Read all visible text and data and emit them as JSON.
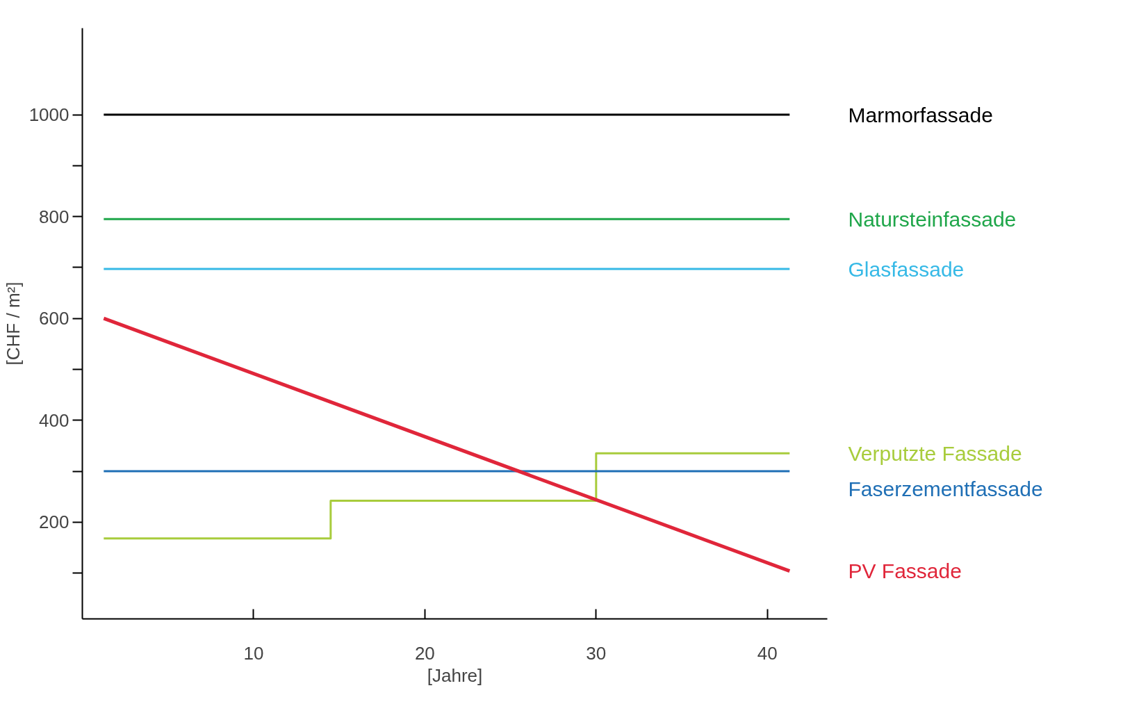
{
  "chart_data": {
    "type": "line",
    "xlabel": "[Jahre]",
    "ylabel": "[CHF / m²]",
    "xlim": [
      0,
      43.5
    ],
    "ylim": [
      10,
      1170
    ],
    "xticks": [
      10,
      20,
      30,
      40
    ],
    "yticks": [
      {
        "value": 100,
        "label": null
      },
      200,
      {
        "value": 300,
        "label": null
      },
      400,
      {
        "value": 500,
        "label": null
      },
      600,
      {
        "value": 700,
        "label": null
      },
      800,
      {
        "value": 900,
        "label": null
      },
      1000
    ],
    "grid": false,
    "series": [
      {
        "name": "Marmorfassade",
        "color": "#000000",
        "x": [
          1.25,
          41.3
        ],
        "values": [
          1000,
          1000
        ]
      },
      {
        "name": "Natursteinfassade",
        "color": "#1fa64a",
        "x": [
          1.25,
          41.3
        ],
        "values": [
          795,
          795
        ]
      },
      {
        "name": "Glasfassade",
        "color": "#36b9e6",
        "x": [
          1.25,
          41.3
        ],
        "values": [
          697,
          697
        ]
      },
      {
        "name": "Verputzte Fassade",
        "type": "step",
        "color": "#a8cc3c",
        "x": [
          1.25,
          14.5,
          30,
          41.3
        ],
        "values": [
          168,
          242,
          335,
          335
        ]
      },
      {
        "name": "Faserzementfassade",
        "color": "#1f6fb5",
        "x": [
          1.25,
          41.3
        ],
        "values": [
          300,
          300
        ]
      },
      {
        "name": "PV Fassade",
        "color": "#e0263a",
        "x": [
          1.25,
          41.3
        ],
        "values": [
          600,
          104
        ]
      }
    ]
  }
}
